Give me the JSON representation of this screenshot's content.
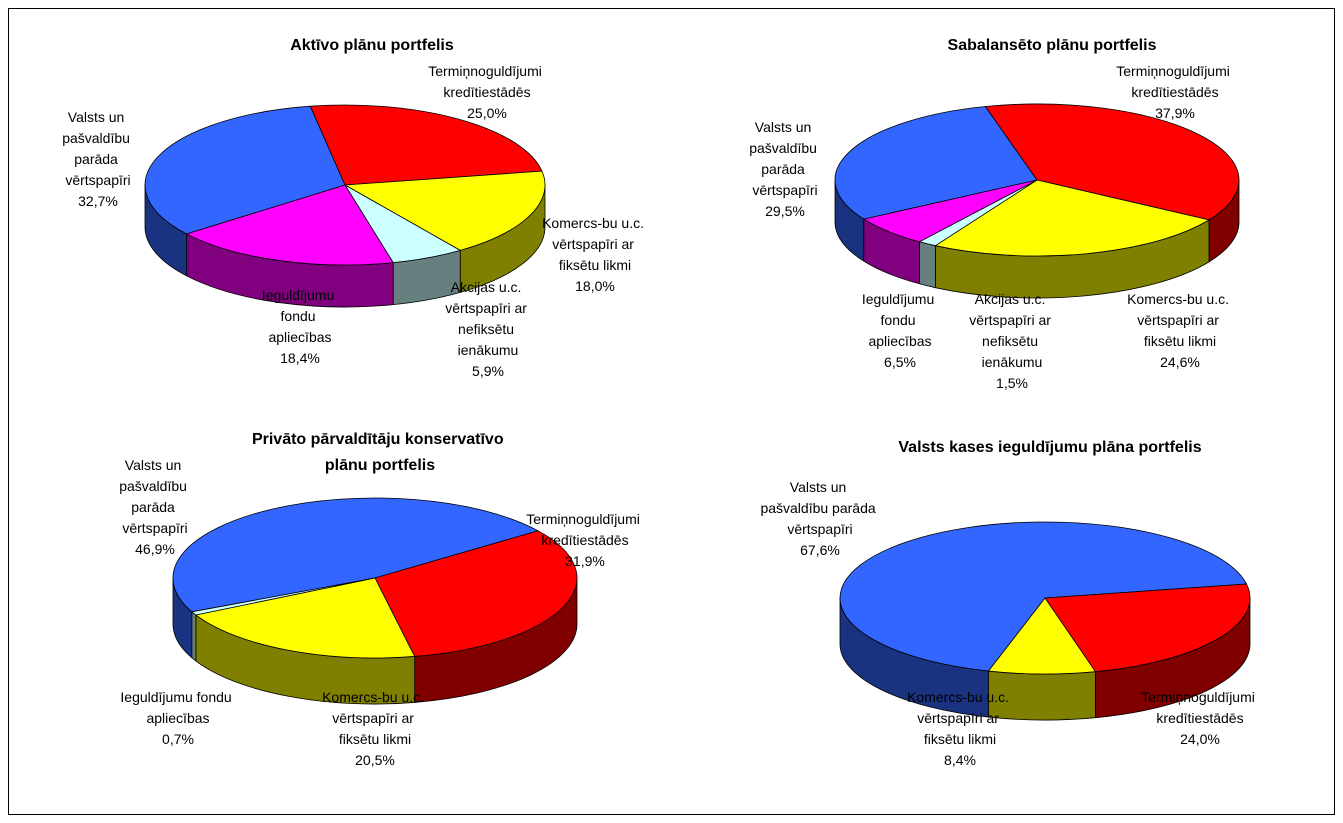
{
  "chart_data": [
    {
      "type": "pie",
      "title": "Aktīvo plānu portfelis",
      "categories": [
        "Valsts un pašvaldību parāda vērtspapīri",
        "Termiņnoguldījumi kredītiestādēs",
        "Komercs-bu u.c. vērtspapīri ar fiksētu likmi",
        "Akcijas u.c. vērtspapīri ar nefiksētu ienākumu",
        "Ieguldījumu fondu apliecības"
      ],
      "values": [
        32.7,
        25.0,
        18.0,
        5.9,
        18.4
      ],
      "value_labels": [
        "32,7%",
        "25,0%",
        "18,0%",
        "5,9%",
        "18,4%"
      ],
      "colors": [
        "#3366ff",
        "#ff0000",
        "#ffff00",
        "#ccffff",
        "#ff00ff"
      ]
    },
    {
      "type": "pie",
      "title": "Sabalansēto plānu portfelis",
      "categories": [
        "Valsts un pašvaldību parāda vērtspapīri",
        "Termiņnoguldījumi kredītiestādēs",
        "Komercs-bu u.c. vērtspapīri ar fiksētu likmi",
        "Akcijas u.c. vērtspapīri ar nefiksētu ienākumu",
        "Ieguldījumu fondu apliecības"
      ],
      "values": [
        29.5,
        37.9,
        24.6,
        1.5,
        6.5
      ],
      "value_labels": [
        "29,5%",
        "37,9%",
        "24,6%",
        "1,5%",
        "6,5%"
      ],
      "colors": [
        "#3366ff",
        "#ff0000",
        "#ffff00",
        "#ccffff",
        "#ff00ff"
      ]
    },
    {
      "type": "pie",
      "title": "Privāto pārvaldītāju konservatīvo plānu portfelis",
      "categories": [
        "Valsts un pašvaldību parāda vērtspapīri",
        "Termiņnoguldījumi kredītiestādēs",
        "Komercs-bu u.c. vērtspapīri ar fiksētu likmi",
        "Ieguldījumu fondu apliecības"
      ],
      "values": [
        46.9,
        31.9,
        20.5,
        0.7
      ],
      "value_labels": [
        "46,9%",
        "31,9%",
        "20,5%",
        "0,7%"
      ],
      "colors": [
        "#3366ff",
        "#ff0000",
        "#ffff00",
        "#ccffff"
      ]
    },
    {
      "type": "pie",
      "title": "Valsts kases ieguldījumu plāna portfelis",
      "categories": [
        "Valsts un pašvaldību parāda vērtspapīri",
        "Termiņnoguldījumi kredītiestādēs",
        "Komercs-bu u.c. vērtspapīri ar fiksētu likmi"
      ],
      "values": [
        67.6,
        24.0,
        8.4
      ],
      "value_labels": [
        "67,6%",
        "24,0%",
        "8,4%"
      ],
      "colors": [
        "#3366ff",
        "#ff0000",
        "#ffff00"
      ]
    }
  ]
}
